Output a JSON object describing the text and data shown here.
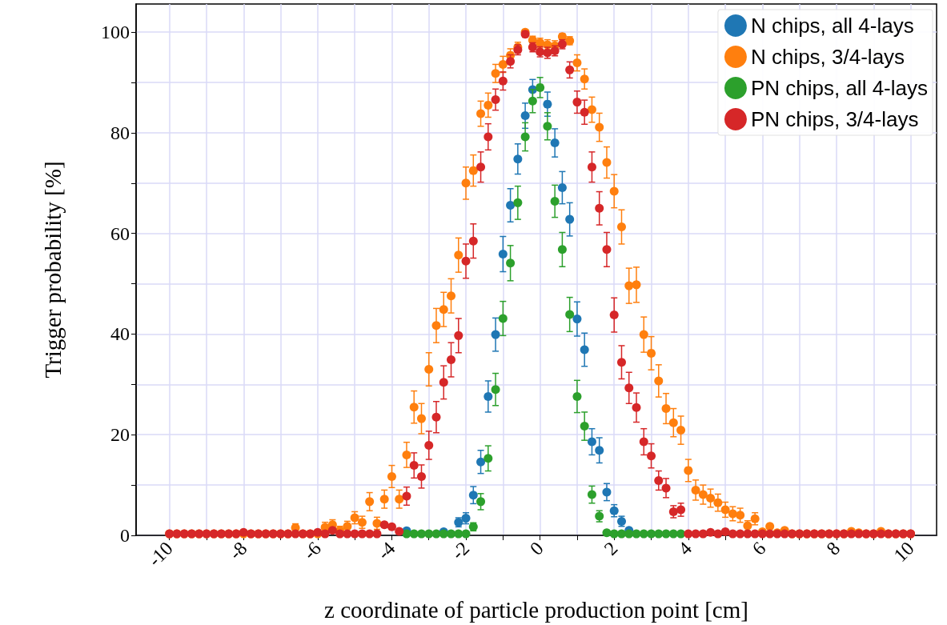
{
  "chart_data": {
    "type": "scatter",
    "xlabel": "z coordinate of particle production point [cm]",
    "ylabel": "Trigger probability [%]",
    "x": [
      -10,
      -9.8,
      -9.6,
      -9.4,
      -9.2,
      -9,
      -8.8,
      -8.6,
      -8.4,
      -8.2,
      -8,
      -7.8,
      -7.6,
      -7.4,
      -7.2,
      -7,
      -6.8,
      -6.6,
      -6.4,
      -6.2,
      -6,
      -5.8,
      -5.6,
      -5.4,
      -5.2,
      -5,
      -4.8,
      -4.6,
      -4.4,
      -4.2,
      -4,
      -3.8,
      -3.6,
      -3.4,
      -3.2,
      -3,
      -2.8,
      -2.6,
      -2.4,
      -2.2,
      -2,
      -1.8,
      -1.6,
      -1.4,
      -1.2,
      -1,
      -0.8,
      -0.6,
      -0.4,
      -0.2,
      0,
      0.2,
      0.4,
      0.6,
      0.8,
      1,
      1.2,
      1.4,
      1.6,
      1.8,
      2,
      2.2,
      2.4,
      2.6,
      2.8,
      3,
      3.2,
      3.4,
      3.6,
      3.8,
      4,
      4.2,
      4.4,
      4.6,
      4.8,
      5,
      5.2,
      5.4,
      5.6,
      5.8,
      6,
      6.2,
      6.4,
      6.6,
      6.8,
      7,
      7.2,
      7.4,
      7.6,
      7.8,
      8,
      8.2,
      8.4,
      8.6,
      8.8,
      9,
      9.2,
      9.4,
      9.6,
      9.8,
      10
    ],
    "series": [
      {
        "name": "N chips, all 4-lays",
        "color": "#1f77b4",
        "values": [
          null,
          null,
          null,
          null,
          null,
          null,
          null,
          null,
          null,
          null,
          null,
          null,
          null,
          null,
          null,
          null,
          null,
          null,
          null,
          null,
          null,
          null,
          null,
          null,
          null,
          null,
          null,
          null,
          null,
          null,
          null,
          null,
          0.9,
          null,
          null,
          null,
          null,
          0.7,
          null,
          2.6,
          3.4,
          8,
          14.6,
          27.6,
          39.9,
          55.9,
          65.6,
          74.8,
          83.4,
          88.6,
          null,
          85.7,
          78,
          69.1,
          62.8,
          43,
          36.9,
          18.6,
          16.9,
          8.6,
          4.9,
          2.8,
          1,
          null,
          null,
          null,
          null,
          null,
          null,
          null,
          null,
          null,
          null,
          null,
          null,
          null,
          null,
          null,
          null,
          null,
          null,
          null,
          null,
          null,
          null,
          null,
          null,
          null,
          null,
          null,
          null,
          null,
          null,
          null,
          null,
          null,
          null,
          null,
          null,
          null,
          null
        ],
        "errors": [
          null,
          null,
          null,
          null,
          null,
          null,
          null,
          null,
          null,
          null,
          null,
          null,
          null,
          null,
          null,
          null,
          null,
          null,
          null,
          null,
          null,
          null,
          null,
          null,
          null,
          null,
          null,
          null,
          null,
          null,
          null,
          null,
          null,
          null,
          null,
          null,
          null,
          null,
          null,
          0.9,
          1.1,
          1.7,
          2.3,
          3.1,
          3.3,
          3.5,
          3.3,
          3,
          2.5,
          2,
          null,
          2.4,
          2.8,
          3.2,
          3.3,
          3.4,
          3.3,
          2.6,
          2.5,
          1.7,
          1.2,
          1,
          null,
          null,
          null,
          null,
          null,
          null,
          null,
          null,
          null,
          null,
          null,
          null,
          null,
          null,
          null,
          null,
          null,
          null,
          null,
          null,
          null,
          null,
          null,
          null,
          null,
          null,
          null,
          null,
          null,
          null,
          null,
          null,
          null,
          null,
          null,
          null,
          null,
          null,
          null
        ]
      },
      {
        "name": "N chips, 3/4-lays",
        "color": "#ff7f0e",
        "values": [
          0.3,
          0.3,
          0.3,
          0.3,
          0.3,
          0.3,
          0.3,
          0.3,
          0.3,
          0.3,
          0.3,
          0.3,
          0.3,
          0.3,
          0.3,
          0.3,
          0.3,
          1.5,
          0.3,
          0.3,
          0.3,
          1.6,
          2.1,
          1,
          1.8,
          3.5,
          2.6,
          6.7,
          2.4,
          7.2,
          11.7,
          7.2,
          16,
          25.5,
          23.2,
          33,
          41.7,
          44.9,
          47.6,
          55.7,
          70,
          72.5,
          83.8,
          85.5,
          91.8,
          93.6,
          95.4,
          97,
          100,
          98.4,
          97.9,
          97.5,
          97.3,
          99.1,
          98.3,
          93.9,
          90.7,
          84.6,
          81.1,
          74.1,
          68.4,
          61.3,
          49.6,
          49.8,
          39.9,
          36.2,
          30.7,
          25.2,
          22.4,
          20.9,
          12.9,
          9,
          8.1,
          7.4,
          6.5,
          5.1,
          4.3,
          4,
          1.9,
          3.3,
          0.7,
          1.8,
          0.5,
          1,
          0.3,
          0.3,
          0.3,
          0.3,
          0.3,
          0.3,
          0.3,
          0.3,
          0.8,
          0.5,
          0.3,
          0.3,
          0.8,
          0.3,
          0.3,
          0.3,
          0.3
        ],
        "errors": [
          null,
          null,
          null,
          null,
          null,
          null,
          null,
          null,
          null,
          null,
          null,
          null,
          null,
          null,
          null,
          null,
          null,
          0.8,
          null,
          null,
          null,
          1,
          1,
          0.8,
          1,
          1.2,
          1.2,
          1.8,
          1.2,
          1.8,
          2.2,
          1.8,
          2.5,
          3.2,
          3,
          3.3,
          3.4,
          3.4,
          3.4,
          3.4,
          3.2,
          3.1,
          2.5,
          2.4,
          1.8,
          1.6,
          1.3,
          1,
          0.5,
          0.8,
          0.9,
          1,
          1,
          0.6,
          0.8,
          1.6,
          2,
          2.5,
          2.8,
          3.1,
          3.3,
          3.4,
          3.5,
          3.5,
          3.5,
          3.3,
          3.2,
          3,
          2.8,
          2.8,
          2.2,
          2,
          1.9,
          1.8,
          1.7,
          1.5,
          1.4,
          1.4,
          1,
          1.2,
          null,
          null,
          null,
          null,
          null,
          null,
          null,
          null,
          null,
          null,
          null,
          null,
          null,
          null,
          null,
          null,
          null,
          null,
          null,
          null,
          null
        ]
      },
      {
        "name": "PN chips, all 4-lays",
        "color": "#2ca02c",
        "values": [
          null,
          null,
          null,
          null,
          null,
          null,
          null,
          null,
          null,
          null,
          null,
          null,
          null,
          null,
          null,
          null,
          null,
          null,
          null,
          null,
          null,
          null,
          null,
          null,
          null,
          null,
          null,
          null,
          null,
          null,
          null,
          null,
          0.3,
          0.3,
          0.3,
          0.3,
          0.3,
          0.3,
          0.3,
          0.3,
          0.3,
          1.7,
          6.7,
          15.3,
          29,
          43.1,
          54.1,
          66.1,
          79.2,
          86.3,
          89,
          81.3,
          66.4,
          56.8,
          43.9,
          27.6,
          21.7,
          8.1,
          3.8,
          0.5,
          0.3,
          0.3,
          0.3,
          0.3,
          0.3,
          0.3,
          0.3,
          0.3,
          0.3,
          0.3,
          null,
          null,
          null,
          null,
          null,
          null,
          null,
          null,
          null,
          null,
          null,
          null,
          null,
          null,
          null,
          null,
          null,
          null,
          null,
          null,
          null,
          null,
          null,
          null,
          null,
          null,
          null,
          null,
          null,
          null,
          null
        ],
        "errors": [
          null,
          null,
          null,
          null,
          null,
          null,
          null,
          null,
          null,
          null,
          null,
          null,
          null,
          null,
          null,
          null,
          null,
          null,
          null,
          null,
          null,
          null,
          null,
          null,
          null,
          null,
          null,
          null,
          null,
          null,
          null,
          null,
          null,
          null,
          null,
          null,
          null,
          null,
          null,
          null,
          null,
          0.8,
          1.6,
          2.5,
          3.2,
          3.4,
          3.5,
          3.3,
          2.8,
          2.3,
          2,
          2.7,
          3.2,
          3.4,
          3.4,
          3.2,
          2.8,
          1.7,
          1.1,
          null,
          null,
          null,
          null,
          null,
          null,
          null,
          null,
          null,
          null,
          null,
          null,
          null,
          null,
          null,
          null,
          null,
          null,
          null,
          null,
          null,
          null,
          null,
          null,
          null,
          null,
          null,
          null,
          null,
          null,
          null,
          null,
          null,
          null,
          null,
          null,
          null,
          null,
          null,
          null,
          null,
          null
        ]
      },
      {
        "name": "PN chips, 3/4-lays",
        "color": "#d62728",
        "values": [
          0.3,
          0.3,
          0.3,
          0.3,
          0.3,
          0.3,
          0.3,
          0.3,
          0.3,
          0.3,
          0.6,
          0.3,
          0.3,
          0.3,
          0.3,
          0.3,
          0.3,
          0.3,
          0.3,
          0.3,
          0.6,
          0.3,
          1,
          0.3,
          0.3,
          0.3,
          0.3,
          0.3,
          0.3,
          2.1,
          1.7,
          0.8,
          7.8,
          13.9,
          11.7,
          17.9,
          23.5,
          30.4,
          34.9,
          39.7,
          54.5,
          58.5,
          73.2,
          79.2,
          86.6,
          90.3,
          94.2,
          96.5,
          99.6,
          97,
          96.1,
          95.9,
          96.3,
          97.6,
          92.5,
          86.1,
          84.1,
          73.2,
          65,
          56.8,
          43.8,
          34.4,
          29.3,
          25.4,
          18.6,
          15.8,
          10.9,
          9.4,
          4.7,
          5.1,
          0.3,
          0.3,
          0.3,
          0.6,
          0.3,
          0.7,
          0.3,
          0.3,
          0.3,
          0.3,
          0.3,
          0.3,
          0.3,
          0.3,
          0.3,
          0.3,
          0.3,
          0.3,
          0.3,
          0.3,
          0.3,
          0.3,
          0.3,
          0.3,
          0.3,
          0.3,
          0.3,
          0.3,
          0.3,
          0.3,
          0.3
        ],
        "errors": [
          null,
          null,
          null,
          null,
          null,
          null,
          null,
          null,
          null,
          null,
          null,
          null,
          null,
          null,
          null,
          null,
          null,
          null,
          null,
          null,
          null,
          null,
          null,
          null,
          null,
          null,
          null,
          null,
          null,
          null,
          null,
          null,
          1.8,
          2.5,
          2.3,
          2.8,
          3.1,
          3.3,
          3.4,
          3.4,
          3.4,
          3.4,
          3,
          2.6,
          2.1,
          1.8,
          1.3,
          1,
          0.6,
          0.9,
          1,
          1.1,
          1,
          0.9,
          1.6,
          2.2,
          2.4,
          3,
          3.3,
          3.4,
          3.4,
          3.3,
          3.1,
          2.9,
          2.6,
          2.4,
          1.9,
          1.9,
          1.2,
          1.3,
          null,
          null,
          null,
          null,
          null,
          null,
          null,
          null,
          null,
          null,
          null,
          null,
          null,
          null,
          null,
          null,
          null,
          null,
          null,
          null,
          null,
          null,
          null,
          null,
          null,
          null,
          null,
          null,
          null,
          null,
          null
        ]
      }
    ],
    "xlim": [
      -10.9,
      10.7
    ],
    "ylim": [
      0,
      105.6
    ],
    "xticks": [
      -10,
      {
        "value": -9,
        "label": null
      },
      -8,
      {
        "value": -7,
        "label": null
      },
      -6,
      {
        "value": -5,
        "label": null
      },
      -4,
      {
        "value": -3,
        "label": null
      },
      -2,
      {
        "value": -1,
        "label": null
      },
      0,
      {
        "value": 1,
        "label": null
      },
      2,
      {
        "value": 3,
        "label": null
      },
      4,
      {
        "value": 5,
        "label": null
      },
      6,
      {
        "value": 7,
        "label": null
      },
      8,
      {
        "value": 9,
        "label": null
      },
      10
    ],
    "yticks": [
      0,
      {
        "value": 10,
        "label": null
      },
      20,
      {
        "value": 30,
        "label": null
      },
      40,
      {
        "value": 50,
        "label": null
      },
      60,
      {
        "value": 70,
        "label": null
      },
      80,
      {
        "value": 90,
        "label": null
      },
      100
    ],
    "grid": true,
    "legend": "top right",
    "marker": "circle"
  }
}
